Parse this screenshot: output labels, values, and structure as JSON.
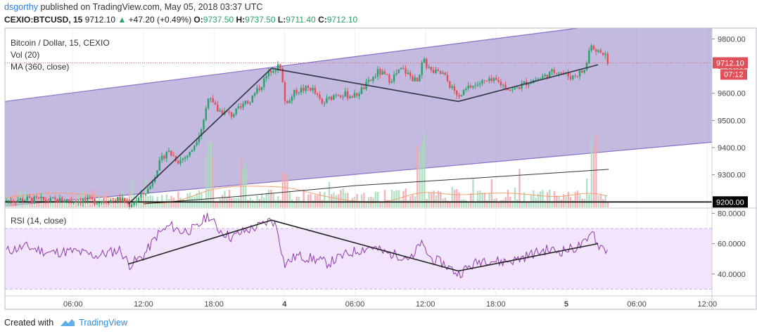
{
  "header": {
    "author": "dsgorthy",
    "published_text": "published on TradingView.com, May 05, 2018 03:37 UTC",
    "symbol": "CEXIO:BTCUSD, 15",
    "last": "9712.10",
    "change_arrow": "▲",
    "change": "+47.20 (+0.49%)",
    "o_label": "O:",
    "o_value": "9737.50",
    "h_label": "H:",
    "h_value": "9737.50",
    "l_label": "L:",
    "l_value": "9711.40",
    "c_label": "C:",
    "c_value": "9712.10"
  },
  "footer": {
    "created_with": "Created with",
    "brand": "TradingView",
    "logo_icon": "tradingview-cloud-icon"
  },
  "colors": {
    "up": "#26a269",
    "down": "#e0505a",
    "channel_fill": "#9f8fcc",
    "channel_line": "#8a6fc4",
    "rsi_band": "#f1e4fb",
    "rsi_line": "#8e3aa8",
    "ma_line": "#333333",
    "tag": "#e0505a"
  },
  "chart_data": [
    {
      "type": "candlestick",
      "title": "Bitcoin / Dollar, 15, CEXIO",
      "legend": [
        "Bitcoin / Dollar, 15, CEXIO",
        "Vol (20)",
        "MA (360, close)"
      ],
      "ylim": [
        9180,
        9840
      ],
      "y_ticks": [
        "9800.00",
        "9700.00",
        "9600.00",
        "9500.00",
        "9400.00",
        "9300.00"
      ],
      "x_ticks": [
        "06:00",
        "12:00",
        "18:00",
        "4",
        "06:00",
        "12:00",
        "18:00",
        "5",
        "06:00",
        "12:00"
      ],
      "x_tick_hours": [
        6,
        12,
        18,
        24,
        30,
        36,
        42,
        48,
        54,
        60
      ],
      "xlim_hours": [
        0.2,
        60.4
      ],
      "price_tag": "9712.10",
      "time_tag": "07:12",
      "horizontal_line": {
        "label": "9200.00",
        "value": 9200
      },
      "ma360": [
        [
          12,
          9193
        ],
        [
          20,
          9220
        ],
        [
          30,
          9260
        ],
        [
          40,
          9287
        ],
        [
          51.6,
          9320
        ]
      ],
      "channel": {
        "upper": [
          [
            0.2,
            9570
          ],
          [
            49,
            9840
          ]
        ],
        "lower": [
          [
            0.2,
            9185
          ],
          [
            60.4,
            9420
          ]
        ],
        "fill_right_top": 9840
      },
      "trend_lines": [
        [
          [
            10.7,
            9192
          ],
          [
            22.9,
            9692
          ]
        ],
        [
          [
            22.9,
            9692
          ],
          [
            38.8,
            9570
          ]
        ],
        [
          [
            38.8,
            9570
          ],
          [
            50.7,
            9705
          ]
        ]
      ],
      "price_path": [
        [
          0.2,
          9205
        ],
        [
          2,
          9210
        ],
        [
          4,
          9205
        ],
        [
          6,
          9207
        ],
        [
          8,
          9203
        ],
        [
          10,
          9210
        ],
        [
          10.8,
          9190
        ],
        [
          11.5,
          9210
        ],
        [
          12.5,
          9250
        ],
        [
          13.2,
          9330
        ],
        [
          14,
          9390
        ],
        [
          15,
          9350
        ],
        [
          16,
          9380
        ],
        [
          17,
          9480
        ],
        [
          17.6,
          9600
        ],
        [
          18.2,
          9540
        ],
        [
          19.5,
          9520
        ],
        [
          21,
          9570
        ],
        [
          22,
          9630
        ],
        [
          22.9,
          9690
        ],
        [
          23.6,
          9700
        ],
        [
          24.1,
          9560
        ],
        [
          25,
          9610
        ],
        [
          26.3,
          9620
        ],
        [
          27.2,
          9560
        ],
        [
          28.4,
          9600
        ],
        [
          30,
          9590
        ],
        [
          31.2,
          9640
        ],
        [
          32,
          9680
        ],
        [
          33,
          9650
        ],
        [
          34,
          9690
        ],
        [
          35.3,
          9640
        ],
        [
          35.8,
          9720
        ],
        [
          36.5,
          9680
        ],
        [
          37.5,
          9670
        ],
        [
          38.8,
          9580
        ],
        [
          39.6,
          9620
        ],
        [
          40.8,
          9640
        ],
        [
          42,
          9645
        ],
        [
          43.4,
          9610
        ],
        [
          44.6,
          9640
        ],
        [
          46,
          9660
        ],
        [
          47.2,
          9685
        ],
        [
          48.4,
          9660
        ],
        [
          49.6,
          9685
        ],
        [
          50.1,
          9790
        ],
        [
          50.5,
          9740
        ],
        [
          51,
          9760
        ],
        [
          51.6,
          9712
        ]
      ],
      "volume_peaks": [
        [
          17.6,
          0.4
        ],
        [
          20.5,
          0.3
        ],
        [
          24,
          0.22
        ],
        [
          35.6,
          0.42
        ],
        [
          50.3,
          0.45
        ]
      ]
    },
    {
      "type": "line",
      "title": "RSI (14, close)",
      "ylim": [
        26,
        83
      ],
      "y_ticks": [
        "80.0000",
        "60.0000",
        "40.0000"
      ],
      "y_tick_values": [
        80,
        60,
        40
      ],
      "band": [
        30,
        70
      ],
      "trend_lines": [
        [
          [
            10.7,
            46.5
          ],
          [
            22.9,
            75.5
          ]
        ],
        [
          [
            22.9,
            75.5
          ],
          [
            38.8,
            42
          ]
        ],
        [
          [
            38.8,
            42
          ],
          [
            50.7,
            60
          ]
        ]
      ],
      "rsi_path": [
        [
          0.2,
          55
        ],
        [
          2,
          58
        ],
        [
          4,
          54
        ],
        [
          6,
          55
        ],
        [
          8,
          52
        ],
        [
          10,
          56
        ],
        [
          10.8,
          46
        ],
        [
          12,
          52
        ],
        [
          13.2,
          66
        ],
        [
          14.3,
          72
        ],
        [
          15.2,
          68
        ],
        [
          16.5,
          70
        ],
        [
          17.5,
          79
        ],
        [
          18.3,
          70
        ],
        [
          19.5,
          64
        ],
        [
          20.5,
          68
        ],
        [
          22,
          72
        ],
        [
          22.9,
          76
        ],
        [
          23.4,
          70
        ],
        [
          24,
          46
        ],
        [
          25,
          52
        ],
        [
          26.5,
          50
        ],
        [
          27.7,
          47
        ],
        [
          29,
          52
        ],
        [
          30,
          55
        ],
        [
          31.4,
          58
        ],
        [
          32.5,
          54
        ],
        [
          34,
          52
        ],
        [
          35,
          50
        ],
        [
          35.5,
          61
        ],
        [
          36.5,
          50
        ],
        [
          37.5,
          47
        ],
        [
          38.8,
          40
        ],
        [
          39.8,
          45
        ],
        [
          41,
          50
        ],
        [
          42.3,
          48
        ],
        [
          43.6,
          49
        ],
        [
          45,
          53
        ],
        [
          46.3,
          56
        ],
        [
          47.5,
          55
        ],
        [
          48.7,
          57
        ],
        [
          49.8,
          61
        ],
        [
          50.2,
          71
        ],
        [
          50.6,
          60
        ],
        [
          51,
          58
        ],
        [
          51.6,
          55
        ]
      ]
    }
  ]
}
